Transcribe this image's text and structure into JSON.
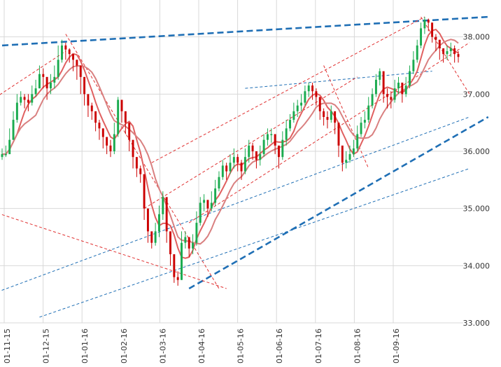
{
  "chart_data": {
    "type": "candlestick",
    "title": "",
    "xlabel": "",
    "ylabel": "",
    "ylim": [
      33.0,
      38.4
    ],
    "yticks": [
      {
        "value": 38.0,
        "label": "38.000"
      },
      {
        "value": 37.0,
        "label": "37.000"
      },
      {
        "value": 36.0,
        "label": "36.000"
      },
      {
        "value": 35.0,
        "label": "35.000"
      },
      {
        "value": 34.0,
        "label": "34.000"
      },
      {
        "value": 33.0,
        "label": "33.000"
      }
    ],
    "xticks": [
      "01-11-15",
      "01-12-15",
      "01-01-16",
      "01-02-16",
      "01-03-16",
      "01-04-16",
      "01-05-16",
      "01-06-16",
      "01-07-16",
      "01-08-16",
      "01-09-16"
    ],
    "grid": true,
    "y_axis_side": "right",
    "series": [
      {
        "kind": "candles",
        "up_color": "#1aab4f",
        "down_color": "#cc0000",
        "close": [
          35.95,
          35.95,
          36.2,
          36.55,
          36.85,
          36.95,
          36.9,
          36.85,
          37.0,
          37.1,
          37.35,
          37.3,
          37.1,
          37.2,
          37.3,
          37.6,
          37.85,
          37.78,
          37.7,
          37.6,
          37.5,
          37.3,
          37.0,
          36.8,
          36.7,
          36.5,
          36.4,
          36.25,
          36.1,
          36.0,
          36.3,
          36.9,
          36.7,
          36.5,
          36.2,
          35.9,
          35.7,
          35.6,
          35.0,
          34.6,
          34.4,
          34.6,
          34.9,
          35.2,
          34.6,
          34.2,
          33.8,
          33.75,
          34.4,
          34.5,
          34.3,
          34.4,
          34.75,
          35.1,
          35.15,
          35.0,
          35.1,
          35.35,
          35.55,
          35.75,
          35.65,
          35.8,
          35.9,
          35.8,
          35.65,
          35.9,
          36.1,
          36.0,
          35.85,
          35.95,
          36.2,
          36.3,
          36.3,
          36.1,
          35.9,
          36.2,
          36.4,
          36.55,
          36.7,
          36.8,
          36.85,
          37.05,
          37.15,
          37.05,
          36.95,
          36.7,
          36.6,
          36.55,
          36.7,
          36.5,
          36.1,
          35.8,
          35.85,
          35.95,
          36.05,
          36.3,
          36.5,
          36.55,
          36.8,
          37.0,
          37.25,
          37.4,
          37.0,
          36.95,
          36.9,
          37.1,
          37.2,
          37.0,
          37.15,
          37.4,
          37.6,
          37.85,
          38.15,
          38.3,
          38.25,
          38.0,
          37.95,
          37.8,
          37.7,
          37.75,
          37.8,
          37.7,
          37.65
        ],
        "high": [
          36.05,
          36.1,
          36.4,
          36.7,
          37.0,
          37.05,
          37.0,
          37.0,
          37.15,
          37.25,
          37.5,
          37.45,
          37.25,
          37.35,
          37.5,
          37.85,
          37.95,
          37.9,
          37.8,
          37.7,
          37.6,
          37.4,
          37.15,
          36.95,
          36.85,
          36.65,
          36.55,
          36.4,
          36.25,
          36.2,
          36.5,
          36.95,
          36.9,
          36.65,
          36.35,
          36.0,
          35.85,
          35.75,
          35.15,
          34.75,
          34.5,
          34.75,
          35.05,
          35.3,
          34.95,
          34.4,
          34.0,
          33.9,
          34.6,
          34.6,
          34.5,
          34.55,
          34.95,
          35.2,
          35.25,
          35.15,
          35.3,
          35.5,
          35.65,
          35.85,
          35.8,
          35.95,
          36.05,
          35.95,
          35.85,
          36.05,
          36.2,
          36.15,
          36.0,
          36.1,
          36.3,
          36.4,
          36.4,
          36.25,
          36.05,
          36.35,
          36.55,
          36.65,
          36.85,
          36.9,
          37.0,
          37.15,
          37.2,
          37.2,
          37.1,
          36.85,
          36.75,
          36.7,
          36.8,
          36.65,
          36.3,
          35.95,
          36.0,
          36.1,
          36.2,
          36.45,
          36.6,
          36.7,
          36.95,
          37.1,
          37.35,
          37.45,
          37.2,
          37.1,
          37.05,
          37.25,
          37.3,
          37.2,
          37.3,
          37.5,
          37.75,
          37.95,
          38.25,
          38.35,
          38.32,
          38.1,
          38.05,
          37.9,
          37.8,
          37.85,
          37.9,
          37.85,
          37.75
        ],
        "low": [
          35.85,
          35.9,
          35.95,
          36.2,
          36.5,
          36.8,
          36.75,
          36.7,
          36.8,
          36.95,
          37.1,
          37.1,
          36.9,
          37.0,
          37.1,
          37.25,
          37.55,
          37.6,
          37.55,
          37.4,
          37.25,
          37.0,
          36.8,
          36.6,
          36.55,
          36.35,
          36.2,
          36.05,
          35.95,
          35.9,
          35.95,
          36.25,
          36.5,
          36.3,
          36.0,
          35.7,
          35.55,
          35.45,
          34.8,
          34.4,
          34.3,
          34.35,
          34.5,
          34.8,
          34.4,
          34.0,
          33.7,
          33.65,
          33.75,
          34.3,
          34.15,
          34.2,
          34.35,
          34.7,
          34.95,
          34.85,
          34.95,
          35.05,
          35.3,
          35.5,
          35.5,
          35.6,
          35.7,
          35.65,
          35.5,
          35.6,
          35.8,
          35.85,
          35.7,
          35.75,
          35.9,
          36.1,
          36.15,
          35.95,
          35.7,
          35.85,
          36.1,
          36.35,
          36.5,
          36.6,
          36.7,
          36.8,
          36.95,
          36.9,
          36.8,
          36.55,
          36.45,
          36.4,
          36.5,
          36.3,
          35.9,
          35.65,
          35.7,
          35.8,
          35.9,
          36.0,
          36.25,
          36.4,
          36.5,
          36.75,
          36.95,
          37.15,
          36.85,
          36.75,
          36.75,
          36.85,
          37.0,
          36.85,
          36.95,
          37.1,
          37.35,
          37.55,
          37.8,
          38.05,
          38.1,
          37.9,
          37.75,
          37.6,
          37.55,
          37.6,
          37.65,
          37.55,
          37.55
        ]
      },
      {
        "kind": "moving_average",
        "period": 5,
        "color": "#e06060"
      },
      {
        "kind": "moving_average",
        "period": 10,
        "color": "#d98080"
      }
    ],
    "trendlines": [
      {
        "color": "#1f6fb5",
        "style": "thick-dash",
        "points": [
          [
            0,
            37.85
          ],
          [
            130,
            38.35
          ]
        ]
      },
      {
        "color": "#1f6fb5",
        "style": "thick-dash",
        "points": [
          [
            50,
            33.6
          ],
          [
            130,
            36.6
          ]
        ]
      },
      {
        "color": "#1f6fb5",
        "style": "thin-dash",
        "points": [
          [
            -5,
            33.45
          ],
          [
            125,
            36.6
          ]
        ]
      },
      {
        "color": "#1f6fb5",
        "style": "thin-dash",
        "points": [
          [
            10,
            33.1
          ],
          [
            125,
            35.7
          ]
        ]
      },
      {
        "color": "#1f6fb5",
        "style": "thin-dash",
        "points": [
          [
            65,
            37.1
          ],
          [
            115,
            37.4
          ]
        ]
      },
      {
        "color": "#e03030",
        "style": "thin-dash",
        "points": [
          [
            -5,
            36.8
          ],
          [
            17,
            37.75
          ]
        ]
      },
      {
        "color": "#e03030",
        "style": "thin-dash",
        "points": [
          [
            17,
            38.05
          ],
          [
            58,
            33.6
          ]
        ]
      },
      {
        "color": "#e03030",
        "style": "thin-dash",
        "points": [
          [
            -5,
            35.0
          ],
          [
            60,
            33.6
          ]
        ]
      },
      {
        "color": "#e03030",
        "style": "thin-dash",
        "points": [
          [
            38,
            35.0
          ],
          [
            95,
            37.3
          ]
        ]
      },
      {
        "color": "#e03030",
        "style": "thin-dash",
        "points": [
          [
            50,
            34.75
          ],
          [
            125,
            37.9
          ]
        ]
      },
      {
        "color": "#e03030",
        "style": "thin-dash",
        "points": [
          [
            40,
            35.8
          ],
          [
            113,
            38.35
          ]
        ]
      },
      {
        "color": "#e03030",
        "style": "thin-dash",
        "points": [
          [
            86,
            37.5
          ],
          [
            98,
            35.7
          ]
        ]
      },
      {
        "color": "#e03030",
        "style": "thin-dash",
        "points": [
          [
            112,
            38.35
          ],
          [
            125,
            37.0
          ]
        ]
      }
    ]
  }
}
